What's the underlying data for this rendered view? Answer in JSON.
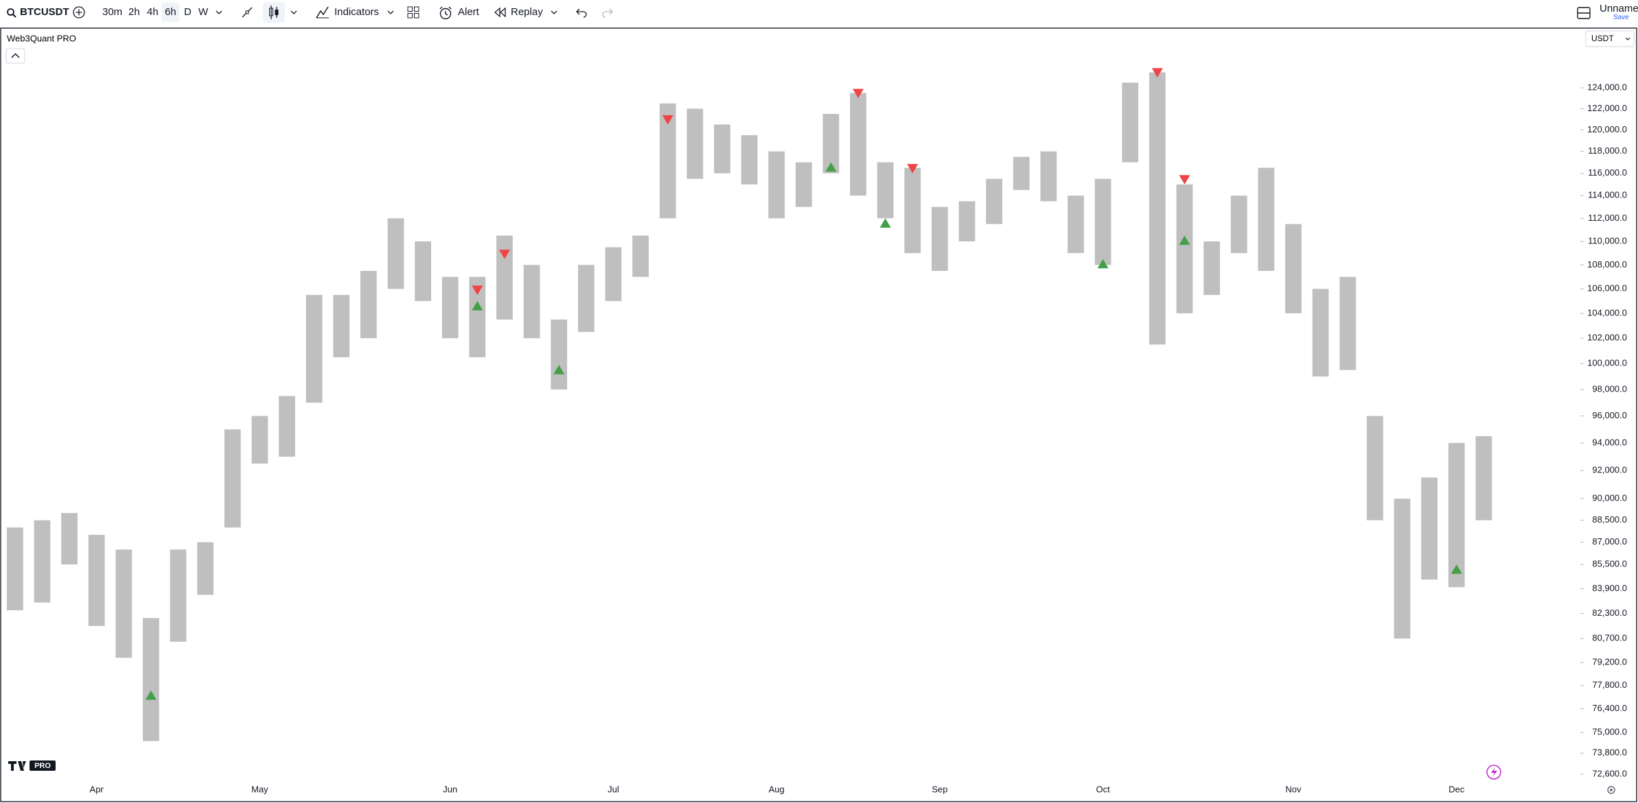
{
  "toolbar": {
    "symbol": "BTCUSDT",
    "timeframes": [
      "30m",
      "2h",
      "4h",
      "6h",
      "D",
      "W"
    ],
    "indicators": "Indicators",
    "alert": "Alert",
    "replay": "Replay",
    "layout_name": "Unnamed",
    "save": "Save"
  },
  "chart_header": {
    "indicator_name": "Web3Quant PRO",
    "currency": "USDT",
    "logo_badge": "PRO"
  },
  "chart_data": {
    "type": "range",
    "categories": [
      null,
      null,
      null,
      "Apr",
      null,
      null,
      null,
      null,
      null,
      "May",
      null,
      null,
      null,
      null,
      null,
      null,
      "Jun",
      null,
      null,
      null,
      null,
      null,
      "Jul",
      null,
      null,
      null,
      null,
      null,
      "Aug",
      null,
      null,
      null,
      null,
      null,
      "Sep",
      null,
      null,
      null,
      null,
      null,
      "Oct",
      null,
      null,
      null,
      null,
      null,
      null,
      "Nov",
      null,
      null,
      null,
      null,
      null,
      "Dec",
      null,
      null,
      null,
      null
    ],
    "low": [
      82500,
      83000,
      85500,
      81500,
      79500,
      74500,
      80500,
      83500,
      88000,
      92500,
      93000,
      97000,
      100500,
      102000,
      106000,
      105000,
      102000,
      100500,
      103500,
      102000,
      98000,
      102500,
      105000,
      107000,
      112000,
      115500,
      116000,
      115000,
      112000,
      113000,
      116000,
      114000,
      112000,
      109000,
      107500,
      110000,
      111500,
      114500,
      113500,
      109000,
      108000,
      117000,
      101500,
      104000,
      105500,
      109000,
      107500,
      104000,
      99000,
      99500,
      88500,
      80700,
      84500,
      84000,
      88500,
      null,
      null,
      null
    ],
    "high": [
      88000,
      88500,
      89000,
      87500,
      86500,
      82000,
      86500,
      87000,
      95000,
      96000,
      97500,
      105500,
      105500,
      107500,
      112000,
      110000,
      107000,
      107000,
      110500,
      108000,
      103500,
      108000,
      109500,
      110500,
      122500,
      122000,
      120500,
      119500,
      118000,
      117000,
      121500,
      123500,
      117000,
      116500,
      113000,
      113500,
      115500,
      117500,
      118000,
      114000,
      115500,
      124500,
      125500,
      115000,
      110000,
      114000,
      116500,
      111500,
      106000,
      107000,
      96000,
      90000,
      91500,
      94000,
      94500,
      null,
      null,
      null
    ],
    "color": "#a9a9a9",
    "buy": [
      null,
      null,
      null,
      null,
      null,
      77500,
      null,
      null,
      null,
      null,
      null,
      null,
      null,
      null,
      null,
      null,
      null,
      105000,
      null,
      null,
      99900,
      null,
      null,
      null,
      null,
      null,
      null,
      null,
      null,
      null,
      117000,
      null,
      112000,
      null,
      null,
      null,
      null,
      null,
      null,
      null,
      108500,
      null,
      null,
      110500,
      null,
      null,
      null,
      null,
      null,
      null,
      null,
      null,
      null,
      85500,
      null,
      null,
      null,
      null
    ],
    "buy_color": "#43a047",
    "sell": [
      null,
      null,
      null,
      null,
      null,
      null,
      null,
      null,
      null,
      null,
      null,
      null,
      null,
      null,
      null,
      null,
      null,
      105500,
      108500,
      null,
      null,
      null,
      null,
      null,
      120500,
      null,
      null,
      null,
      null,
      null,
      null,
      123000,
      null,
      116000,
      null,
      null,
      null,
      null,
      null,
      null,
      null,
      null,
      125000,
      115000,
      null,
      null,
      null,
      null,
      null,
      null,
      null,
      null,
      null,
      null,
      null,
      null,
      null,
      null
    ],
    "sell_color": "#ef4444",
    "log_scale": true,
    "ylim": [
      72250,
      129700
    ],
    "yticks": [
      {
        "value": 124000,
        "label": "124,000.0"
      },
      {
        "value": 122000,
        "label": "122,000.0"
      },
      {
        "value": 120000,
        "label": "120,000.0"
      },
      {
        "value": 118000,
        "label": "118,000.0"
      },
      {
        "value": 116000,
        "label": "116,000.0"
      },
      {
        "value": 114000,
        "label": "114,000.0"
      },
      {
        "value": 112000,
        "label": "112,000.0"
      },
      {
        "value": 110000,
        "label": "110,000.0"
      },
      {
        "value": 108000,
        "label": "108,000.0"
      },
      {
        "value": 106000,
        "label": "106,000.0"
      },
      {
        "value": 104000,
        "label": "104,000.0"
      },
      {
        "value": 102000,
        "label": "102,000.0"
      },
      {
        "value": 100000,
        "label": "100,000.0"
      },
      {
        "value": 98000,
        "label": "98,000.0"
      },
      {
        "value": 96000,
        "label": "96,000.0"
      },
      {
        "value": 94000,
        "label": "94,000.0"
      },
      {
        "value": 92000,
        "label": "92,000.0"
      },
      {
        "value": 90000,
        "label": "90,000.0"
      },
      {
        "value": 88500,
        "label": "88,500.0"
      },
      {
        "value": 87000,
        "label": "87,000.0"
      },
      {
        "value": 85500,
        "label": "85,500.0"
      },
      {
        "value": 83900,
        "label": "83,900.0"
      },
      {
        "value": 82300,
        "label": "82,300.0"
      },
      {
        "value": 80700,
        "label": "80,700.0"
      },
      {
        "value": 79200,
        "label": "79,200.0"
      },
      {
        "value": 77800,
        "label": "77,800.0"
      },
      {
        "value": 76400,
        "label": "76,400.0"
      },
      {
        "value": 75000,
        "label": "75,000.0"
      },
      {
        "value": 73800,
        "label": "73,800.0"
      },
      {
        "value": 72600,
        "label": "72,600.0"
      }
    ],
    "grid": false
  }
}
